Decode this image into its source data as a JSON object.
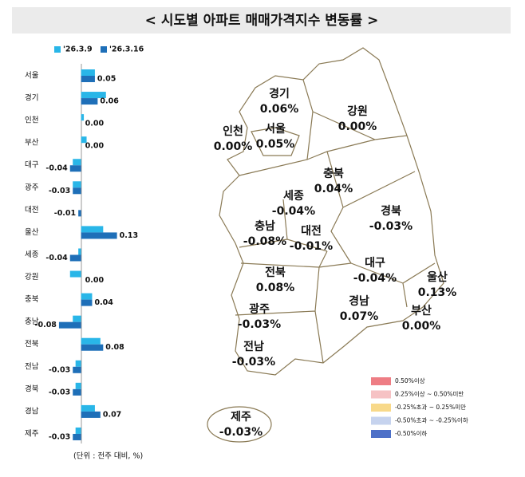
{
  "title": "< 시도별 아파트 매매가격지수 변동률 >",
  "chart_data": {
    "type": "hbar",
    "categories": [
      "서울",
      "경기",
      "인천",
      "부산",
      "대구",
      "광주",
      "대전",
      "울산",
      "세종",
      "강원",
      "충북",
      "충남",
      "전북",
      "전남",
      "경북",
      "경남",
      "제주"
    ],
    "series": [
      {
        "name": "'26.3.9",
        "color": "#29b6e8",
        "values": [
          0.05,
          0.09,
          0.01,
          0.02,
          -0.03,
          -0.03,
          0.0,
          0.08,
          -0.01,
          -0.04,
          0.04,
          -0.03,
          0.07,
          -0.02,
          -0.02,
          0.05,
          -0.02
        ]
      },
      {
        "name": "'26.3.16",
        "color": "#1e6fb8",
        "values": [
          0.05,
          0.06,
          0.0,
          0.0,
          -0.04,
          -0.03,
          -0.01,
          0.13,
          -0.04,
          0.0,
          0.04,
          -0.08,
          0.08,
          -0.03,
          -0.03,
          0.07,
          -0.03
        ],
        "value_labels": [
          "0.05",
          "0.06",
          "0.00",
          "0.00",
          "-0.04",
          "-0.03",
          "-0.01",
          "0.13",
          "-0.04",
          "0.00",
          "0.04",
          "-0.08",
          "0.08",
          "-0.03",
          "-0.03",
          "0.07",
          "-0.03"
        ]
      }
    ],
    "xlim": [
      -0.1,
      0.16
    ],
    "note": "(단위 : 전주 대비, %)"
  },
  "map": {
    "regions": [
      {
        "name": "경기",
        "label": "0.06%"
      },
      {
        "name": "강원",
        "label": "0.00%"
      },
      {
        "name": "인천",
        "label": "0.00%"
      },
      {
        "name": "서울",
        "label": "0.05%"
      },
      {
        "name": "충북",
        "label": "0.04%"
      },
      {
        "name": "세종",
        "label": "-0.04%"
      },
      {
        "name": "경북",
        "label": "-0.03%"
      },
      {
        "name": "충남",
        "label": "-0.08%"
      },
      {
        "name": "대전",
        "label": "-0.01%"
      },
      {
        "name": "대구",
        "label": "-0.04%"
      },
      {
        "name": "전북",
        "label": "0.08%"
      },
      {
        "name": "울산",
        "label": "0.13%"
      },
      {
        "name": "광주",
        "label": "-0.03%"
      },
      {
        "name": "경남",
        "label": "0.07%"
      },
      {
        "name": "부산",
        "label": "0.00%"
      },
      {
        "name": "전남",
        "label": "-0.03%"
      },
      {
        "name": "제주",
        "label": "-0.03%"
      }
    ],
    "fill": "#f8d98a",
    "legend": [
      {
        "color": "#ee7d84",
        "label": "0.50%이상"
      },
      {
        "color": "#f6c2c4",
        "label": "0.25%이상 ~ 0.50%미만"
      },
      {
        "color": "#f8d98a",
        "label": "-0.25%초과 ~ 0.25%미만"
      },
      {
        "color": "#c6d3ee",
        "label": "-0.50%초과 ~ -0.25%이하"
      },
      {
        "color": "#4d70c8",
        "label": "-0.50%이하"
      }
    ]
  }
}
